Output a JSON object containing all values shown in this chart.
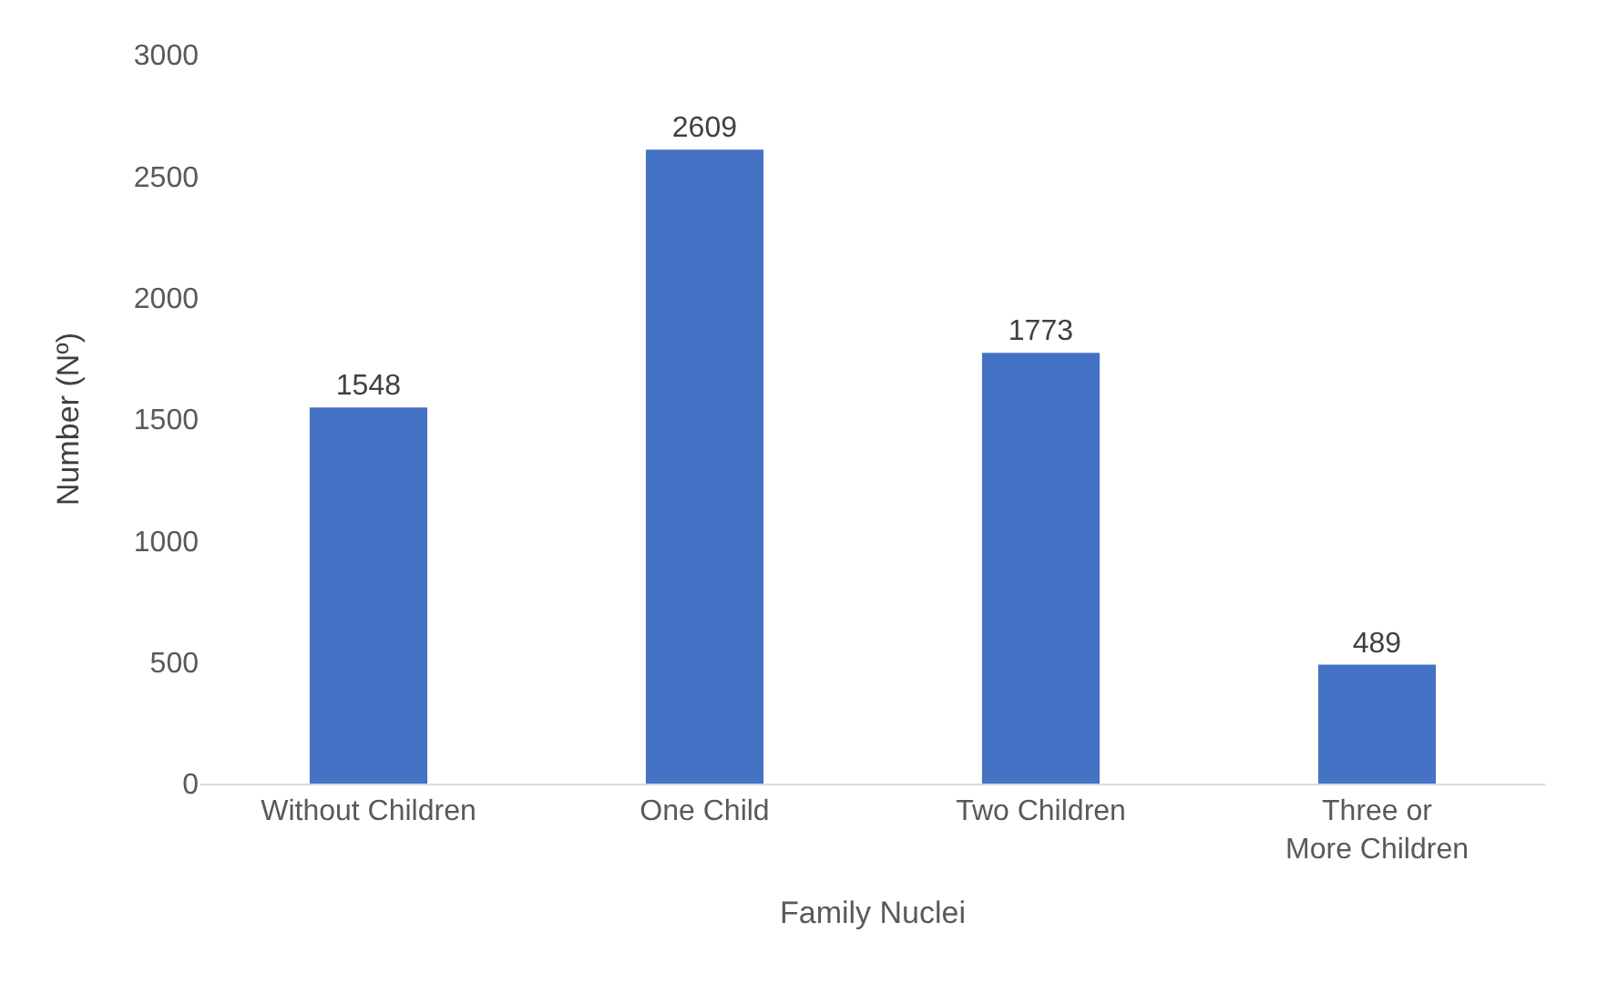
{
  "chart_data": {
    "type": "bar",
    "xlabel": "Family Nuclei",
    "ylabel": "Number (Nº)",
    "categories": [
      "Without Children",
      "One Child",
      "Two Children",
      "Three or More Children"
    ],
    "values": [
      1548,
      2609,
      1773,
      489
    ],
    "color": "#4472c4",
    "data_labels": true,
    "ylim": [
      0,
      3000
    ],
    "yticks": [
      0,
      500,
      1000,
      1500,
      2000,
      2500,
      3000
    ],
    "grid": false
  }
}
